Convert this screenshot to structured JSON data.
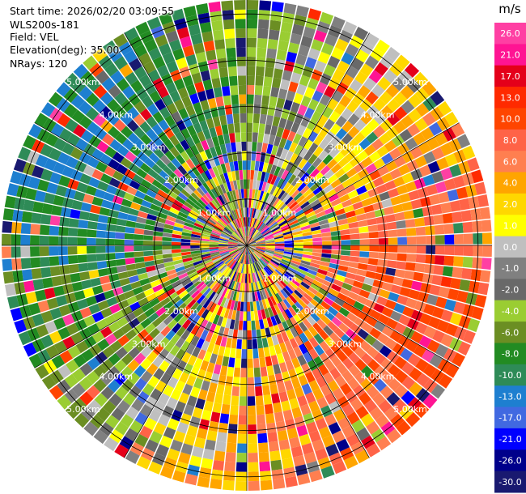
{
  "header": {
    "start_time": "Start time: 2026/02/20 03:09:55",
    "instrument": "WLS200s-181",
    "field": "Field: VEL",
    "elevation": "Elevation(deg): 35.00",
    "nrays": "NRays: 120"
  },
  "chart_data": {
    "type": "heatmap",
    "projection": "polar-ppi",
    "field": "VEL",
    "unit": "m/s",
    "n_rays": 120,
    "elevation_deg": 35.0,
    "range_rings": [
      {
        "label": "1.00km",
        "km": 1
      },
      {
        "label": "2.00km",
        "km": 2
      },
      {
        "label": "3.00km",
        "km": 3
      },
      {
        "label": "4.00km",
        "km": 4
      },
      {
        "label": "5.00km",
        "km": 5
      }
    ],
    "max_range_km": 5.3,
    "colorbar": {
      "unit": "m/s",
      "ticks": [
        "26.0",
        "21.0",
        "17.0",
        "13.0",
        "10.0",
        "8.0",
        "6.0",
        "4.0",
        "2.0",
        "1.0",
        "0.0",
        "-1.0",
        "-2.0",
        "-4.0",
        "-6.0",
        "-8.0",
        "-10.0",
        "-13.0",
        "-17.0",
        "-21.0",
        "-26.0",
        "-30.0"
      ],
      "colors": [
        "#ff3fa3",
        "#ff1493",
        "#e4001a",
        "#ff2a00",
        "#ff4500",
        "#ff6347",
        "#ff7f50",
        "#ffa500",
        "#ffd700",
        "#ffff00",
        "#bfbfbf",
        "#808080",
        "#696969",
        "#9acd32",
        "#6b8e23",
        "#228b22",
        "#2e8b57",
        "#1e7fd0",
        "#4169e1",
        "#0000ff",
        "#00008b",
        "#191970"
      ]
    },
    "pattern": "Positive velocities (yellow/orange/red) dominate east and south-east at mid-to-far range; negative velocities (blue/green) dominate the west and north-west; near range is noisy mixed colours."
  }
}
